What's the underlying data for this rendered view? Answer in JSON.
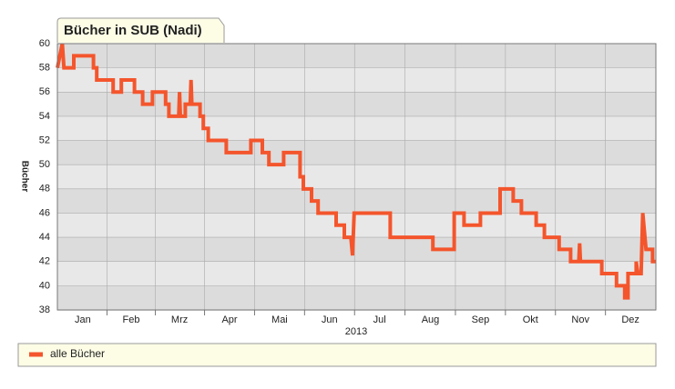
{
  "chart_data": {
    "type": "line",
    "title": "Bücher in SUB (Nadi)",
    "ylabel": "Bücher",
    "xlabel": "2013",
    "xlim": [
      0,
      365
    ],
    "ylim": [
      38,
      60
    ],
    "yticks": [
      38,
      40,
      42,
      44,
      46,
      48,
      50,
      52,
      54,
      56,
      58,
      60
    ],
    "xticks": [
      {
        "value": 15.5,
        "label": "Jan"
      },
      {
        "value": 45,
        "label": "Feb"
      },
      {
        "value": 74.5,
        "label": "Mrz"
      },
      {
        "value": 105,
        "label": "Apr"
      },
      {
        "value": 135.5,
        "label": "Mai"
      },
      {
        "value": 166,
        "label": "Jun"
      },
      {
        "value": 196.5,
        "label": "Jul"
      },
      {
        "value": 227.5,
        "label": "Aug"
      },
      {
        "value": 258,
        "label": "Sep"
      },
      {
        "value": 288.5,
        "label": "Okt"
      },
      {
        "value": 319,
        "label": "Nov"
      },
      {
        "value": 349.5,
        "label": "Dez"
      }
    ],
    "grid": true,
    "x": [
      0,
      3,
      4,
      10,
      10,
      22,
      22,
      24,
      24,
      34,
      34,
      39,
      39,
      47,
      47,
      52,
      52,
      58,
      58,
      66,
      66,
      68,
      68,
      74,
      74.5,
      75,
      78,
      78,
      81,
      81.5,
      82,
      87,
      87,
      89,
      89,
      92,
      92,
      103,
      103,
      118,
      118,
      125,
      125,
      129,
      129,
      138,
      138,
      148,
      148,
      150,
      150,
      155,
      155,
      159,
      159,
      170,
      170,
      175,
      175,
      179,
      180,
      181,
      203,
      203,
      229,
      229,
      242,
      242,
      248,
      248,
      258,
      258,
      270,
      270,
      278,
      278,
      283,
      283,
      292,
      292,
      297,
      297,
      306,
      306,
      313,
      313,
      318,
      318.5,
      319,
      332,
      332,
      341,
      341,
      346,
      346,
      348,
      348,
      353,
      353,
      354,
      356,
      357,
      359,
      363,
      363,
      365
    ],
    "series": [
      {
        "name": "alle Bücher",
        "color": "#f4552c",
        "values": [
          58,
          60,
          58,
          58,
          59,
          59,
          58,
          58,
          57,
          57,
          56,
          56,
          57,
          57,
          56,
          56,
          55,
          55,
          56,
          56,
          55,
          55,
          54,
          54,
          56,
          54,
          54,
          55,
          55,
          57,
          55,
          55,
          54,
          54,
          53,
          53,
          52,
          52,
          51,
          51,
          52,
          52,
          51,
          51,
          50,
          50,
          51,
          51,
          49,
          49,
          48,
          48,
          47,
          47,
          46,
          46,
          45,
          45,
          44,
          44,
          42.5,
          46,
          46,
          44,
          44,
          43,
          43,
          46,
          46,
          45,
          45,
          46,
          46,
          48,
          48,
          47,
          47,
          46,
          46,
          45,
          45,
          44,
          44,
          43,
          43,
          42,
          42,
          43.5,
          42,
          42,
          41,
          41,
          40,
          40,
          39,
          39,
          41,
          41,
          42,
          41,
          41,
          46,
          43,
          43,
          42,
          42
        ]
      }
    ]
  }
}
